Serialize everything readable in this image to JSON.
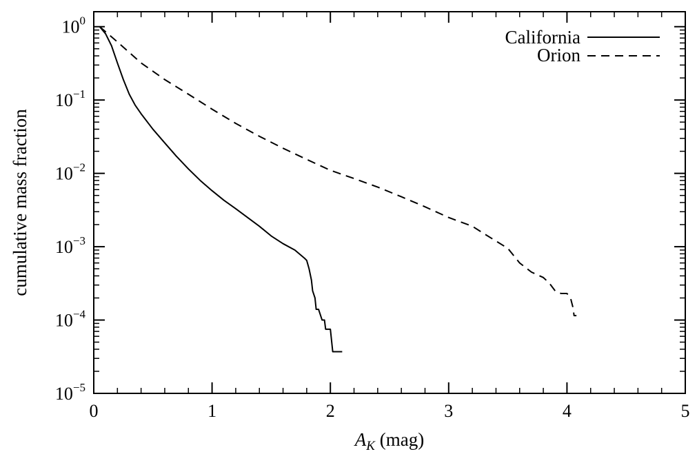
{
  "chart_data": {
    "type": "line",
    "title": "",
    "xlabel": {
      "main": "A",
      "sub": "K",
      "unit": " (mag)"
    },
    "ylabel": "cumulative mass fraction",
    "xlim": [
      0,
      5
    ],
    "ylim": [
      1e-05,
      1.6
    ],
    "y_scale": "log",
    "x_ticks": [
      {
        "value": 0,
        "label": "0"
      },
      {
        "value": 1,
        "label": "1"
      },
      {
        "value": 2,
        "label": "2"
      },
      {
        "value": 3,
        "label": "3"
      },
      {
        "value": 4,
        "label": "4"
      },
      {
        "value": 5,
        "label": "5"
      }
    ],
    "y_ticks": [
      {
        "value": 1,
        "base": "10",
        "exp": "0"
      },
      {
        "value": 0.1,
        "base": "10",
        "exp": "−1"
      },
      {
        "value": 0.01,
        "base": "10",
        "exp": "−2"
      },
      {
        "value": 0.001,
        "base": "10",
        "exp": "−3"
      },
      {
        "value": 0.0001,
        "base": "10",
        "exp": "−4"
      },
      {
        "value": 1e-05,
        "base": "10",
        "exp": "−5"
      }
    ],
    "legend_position": "top-right",
    "series": [
      {
        "name": "California",
        "style": "solid",
        "color": "#000000",
        "x": [
          0.05,
          0.1,
          0.15,
          0.2,
          0.25,
          0.3,
          0.35,
          0.4,
          0.5,
          0.6,
          0.7,
          0.8,
          0.9,
          1.0,
          1.1,
          1.2,
          1.3,
          1.4,
          1.5,
          1.6,
          1.7,
          1.78,
          1.8,
          1.82,
          1.84,
          1.85,
          1.87,
          1.88,
          1.9,
          1.93,
          1.95,
          1.96,
          2.0,
          2.02,
          2.05,
          2.1
        ],
        "y": [
          1.0,
          0.8,
          0.55,
          0.32,
          0.19,
          0.12,
          0.085,
          0.065,
          0.04,
          0.026,
          0.017,
          0.0115,
          0.008,
          0.0058,
          0.0043,
          0.0033,
          0.0025,
          0.0019,
          0.0014,
          0.0011,
          0.0009,
          0.0007,
          0.00065,
          0.0005,
          0.00035,
          0.00025,
          0.0002,
          0.00014,
          0.00014,
          0.0001,
          0.0001,
          7.5e-05,
          7.5e-05,
          3.7e-05,
          3.7e-05,
          3.7e-05
        ]
      },
      {
        "name": "Orion",
        "style": "dashed",
        "color": "#000000",
        "x": [
          0.05,
          0.2,
          0.4,
          0.6,
          0.8,
          1.0,
          1.2,
          1.4,
          1.6,
          1.8,
          2.0,
          2.2,
          2.4,
          2.6,
          2.8,
          3.0,
          3.2,
          3.3,
          3.5,
          3.6,
          3.7,
          3.8,
          3.85,
          3.9,
          3.95,
          4.0,
          4.03,
          4.05,
          4.06,
          4.08
        ],
        "y": [
          1.0,
          0.62,
          0.32,
          0.19,
          0.12,
          0.075,
          0.048,
          0.032,
          0.022,
          0.0155,
          0.011,
          0.0085,
          0.0065,
          0.0048,
          0.0035,
          0.0025,
          0.0019,
          0.0015,
          0.00095,
          0.0006,
          0.00045,
          0.00038,
          0.00032,
          0.00025,
          0.00023,
          0.00023,
          0.0002,
          0.00015,
          0.000115,
          0.000115
        ]
      }
    ]
  }
}
